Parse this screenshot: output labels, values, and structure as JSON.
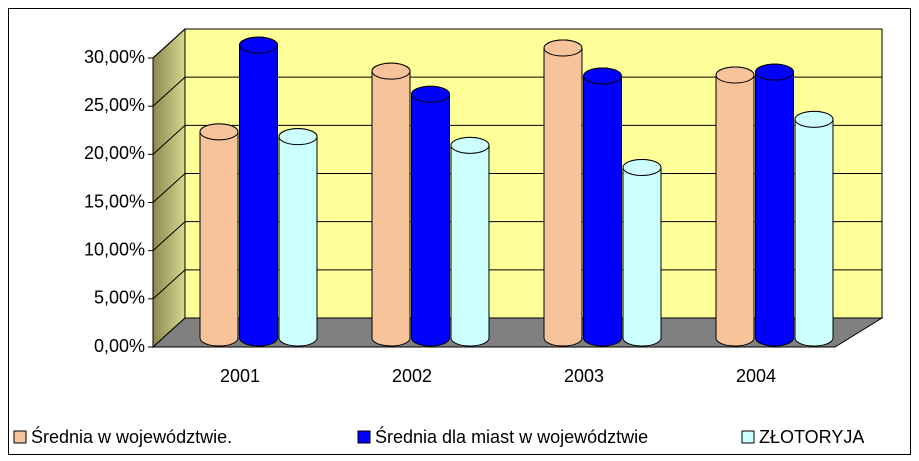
{
  "chart_data": {
    "type": "bar",
    "categories": [
      "2001",
      "2002",
      "2003",
      "2004"
    ],
    "series": [
      {
        "name": "Średnia w województwie.",
        "color": "#f7c39a",
        "values": [
          21.4,
          27.7,
          30.1,
          27.3
        ]
      },
      {
        "name": "Średnia dla miast w województwie",
        "color": "#0000ff",
        "values": [
          30.4,
          25.3,
          27.2,
          27.6
        ]
      },
      {
        "name": "ZŁOTORYJA",
        "color": "#ccffff",
        "values": [
          20.9,
          20.0,
          17.7,
          22.7
        ]
      }
    ],
    "ylim": [
      0,
      30
    ],
    "yticks": [
      {
        "value": 0,
        "label": "0,00%"
      },
      {
        "value": 5,
        "label": "5,00%"
      },
      {
        "value": 10,
        "label": "10,00%"
      },
      {
        "value": 15,
        "label": "15,00%"
      },
      {
        "value": 20,
        "label": "20,00%"
      },
      {
        "value": 25,
        "label": "25,00%"
      },
      {
        "value": 30,
        "label": "30,00%"
      }
    ],
    "grid": true,
    "legend": "bottom"
  }
}
